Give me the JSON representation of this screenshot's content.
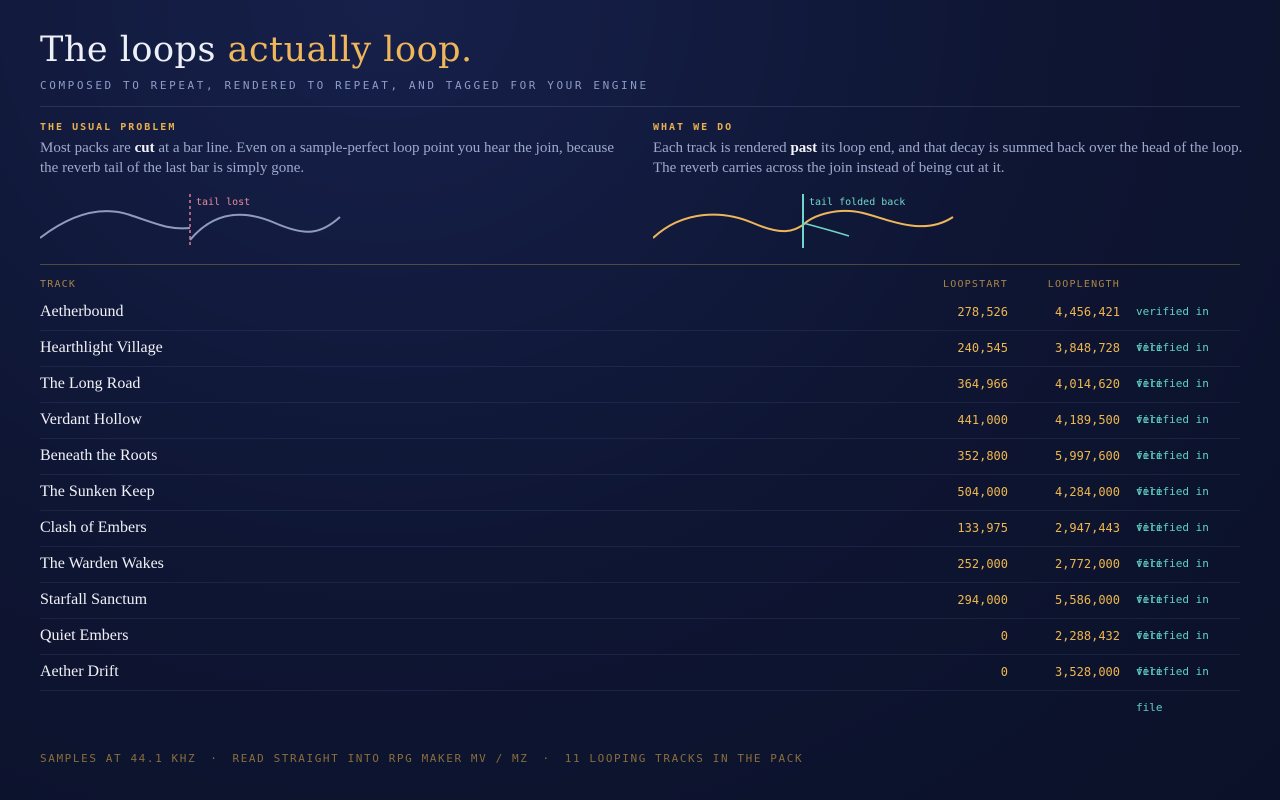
{
  "header": {
    "title": {
      "plain": "The loops",
      "accent": "actually loop."
    },
    "subtitle": "COMPOSED TO REPEAT, RENDERED TO REPEAT, AND TAGGED FOR YOUR ENGINE"
  },
  "panels": [
    {
      "label": "THE USUAL PROBLEM",
      "text": {
        "before": "Most packs are",
        "strong": "cut",
        "after": "at a bar line. Even on a sample-perfect loop point you hear the join, because the reverb tail of the last bar is simply gone."
      },
      "diagram_label": "tail lost"
    },
    {
      "label": "WHAT WE DO",
      "text": {
        "before": "Each track is rendered",
        "strong": "past",
        "after": "its loop end, and that decay is summed back over the head of the loop. The reverb carries across the join instead of being cut at it."
      },
      "diagram_label": "tail folded back"
    }
  ],
  "table": {
    "columns": [
      "TRACK",
      "LOOPSTART",
      "LOOPLENGTH"
    ],
    "rows": [
      [
        "Aetherbound",
        "278,526",
        "4,456,421",
        "verified in file"
      ],
      [
        "Hearthlight Village",
        "240,545",
        "3,848,728",
        "verified in file"
      ],
      [
        "The Long Road",
        "364,966",
        "4,014,620",
        "verified in file"
      ],
      [
        "Verdant Hollow",
        "441,000",
        "4,189,500",
        "verified in file"
      ],
      [
        "Beneath the Roots",
        "352,800",
        "5,997,600",
        "verified in file"
      ],
      [
        "The Sunken Keep",
        "504,000",
        "4,284,000",
        "verified in file"
      ],
      [
        "Clash of Embers",
        "133,975",
        "2,947,443",
        "verified in file"
      ],
      [
        "The Warden Wakes",
        "252,000",
        "2,772,000",
        "verified in file"
      ],
      [
        "Starfall Sanctum",
        "294,000",
        "5,586,000",
        "verified in file"
      ],
      [
        "Quiet Embers",
        "0",
        "2,288,432",
        "verified in file"
      ],
      [
        "Aether Drift",
        "0",
        "3,528,000",
        "verified in file"
      ]
    ]
  },
  "footer": {
    "separator": "·",
    "items": [
      "SAMPLES AT 44.1 KHZ",
      "READ STRAIGHT INTO RPG MAKER MV / MZ",
      "11 LOOPING TRACKS IN THE PACK"
    ]
  }
}
